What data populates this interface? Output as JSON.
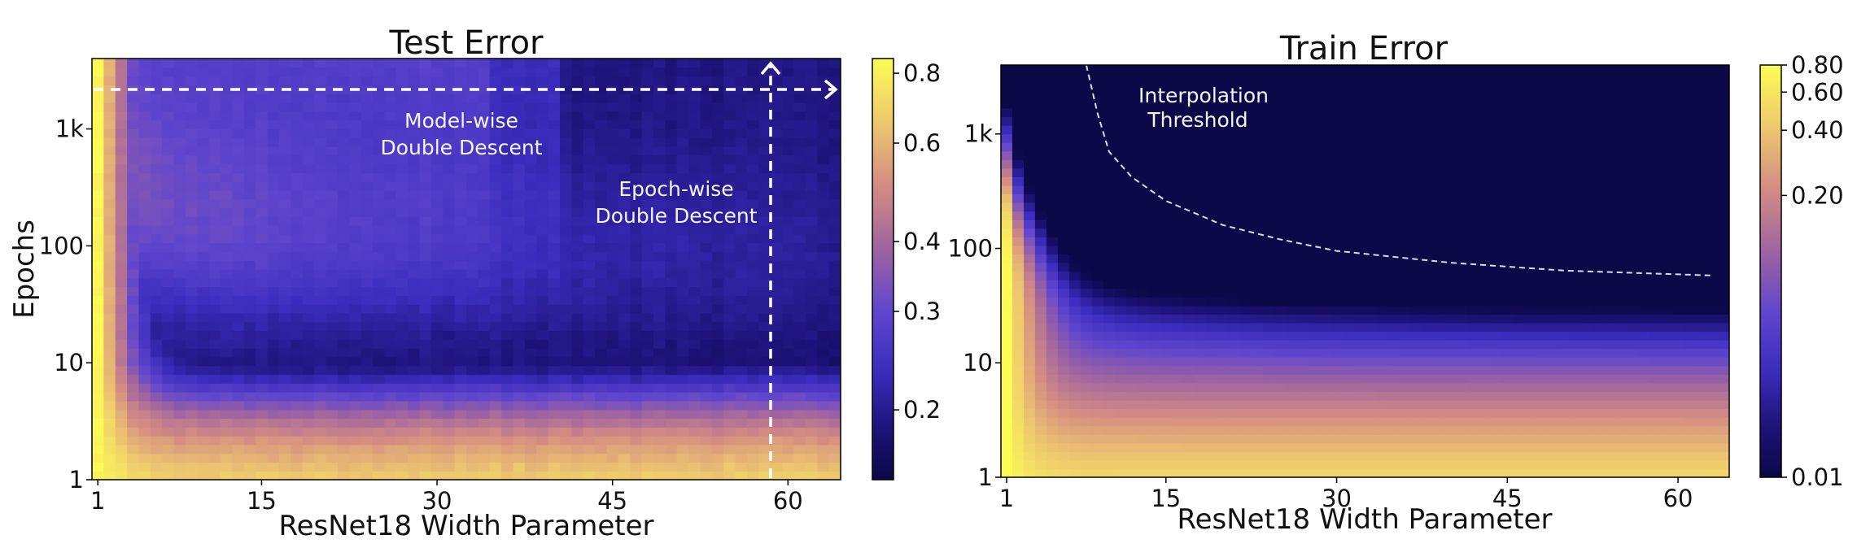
{
  "chart_data": [
    {
      "type": "heatmap",
      "title": "Test Error",
      "xlabel": "ResNet18 Width Parameter",
      "ylabel": "Epochs",
      "x_range": [
        1,
        64
      ],
      "y_range": [
        1,
        4000
      ],
      "y_scale": "log",
      "xticks": [
        1,
        15,
        30,
        45,
        60
      ],
      "yticks": [
        {
          "value": 1,
          "label": "1"
        },
        {
          "value": 10,
          "label": "10"
        },
        {
          "value": 100,
          "label": "100"
        },
        {
          "value": 1000,
          "label": "1k"
        }
      ],
      "colormap": "plasma",
      "colorbar": {
        "range": [
          0.15,
          0.85
        ],
        "scale": "log",
        "ticks": [
          0.2,
          0.3,
          0.4,
          0.6,
          0.8
        ],
        "tick_labels": [
          "0.2",
          "0.3",
          "0.4",
          "0.6",
          "0.8"
        ]
      },
      "annotations": [
        {
          "lines": [
            "Model-wise",
            "Double Descent"
          ],
          "arrow": "horizontal",
          "at_epochs": 2800
        },
        {
          "lines": [
            "Epoch-wise",
            "Double Descent"
          ],
          "arrow": "vertical",
          "at_width": 58
        }
      ],
      "summary": "Error high (~0.8) at width 1-3 and epochs < 3; minimum error (~0.17) near width 45-64 around 20-40 epochs; test error rises again toward ~0.3 at intermediate widths for long training."
    },
    {
      "type": "heatmap",
      "title": "Train Error",
      "xlabel": "ResNet18 Width Parameter",
      "ylabel": "",
      "x_range": [
        1,
        64
      ],
      "y_range": [
        1,
        4000
      ],
      "y_scale": "log",
      "xticks": [
        1,
        15,
        30,
        45,
        60
      ],
      "yticks": [
        {
          "value": 1,
          "label": "1"
        },
        {
          "value": 10,
          "label": "10"
        },
        {
          "value": 100,
          "label": "100"
        },
        {
          "value": 1000,
          "label": "1k"
        }
      ],
      "colormap": "plasma",
      "colorbar": {
        "range": [
          0.01,
          0.8
        ],
        "scale": "log",
        "ticks": [
          0.01,
          0.2,
          0.4,
          0.6,
          0.8
        ],
        "tick_labels": [
          "0.01",
          "0.20",
          "0.40",
          "0.60",
          "0.80"
        ]
      },
      "annotations": [
        {
          "lines": [
            "Interpolation",
            " Threshold"
          ]
        }
      ],
      "interpolation_threshold": [
        {
          "width": 8,
          "epochs": 4000
        },
        {
          "width": 9,
          "epochs": 1500
        },
        {
          "width": 10,
          "epochs": 700
        },
        {
          "width": 12,
          "epochs": 420
        },
        {
          "width": 15,
          "epochs": 260
        },
        {
          "width": 20,
          "epochs": 160
        },
        {
          "width": 25,
          "epochs": 120
        },
        {
          "width": 30,
          "epochs": 95
        },
        {
          "width": 40,
          "epochs": 75
        },
        {
          "width": 50,
          "epochs": 64
        },
        {
          "width": 63,
          "epochs": 58
        }
      ]
    }
  ]
}
